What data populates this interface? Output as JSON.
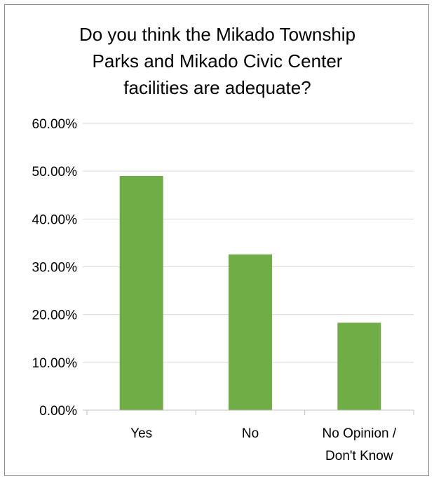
{
  "chart_data": {
    "type": "bar",
    "title_lines": [
      "Do you think the Mikado Township",
      "Parks and Mikado Civic Center",
      "facilities are adequate?"
    ],
    "categories": [
      [
        "Yes"
      ],
      [
        "No"
      ],
      [
        "No Opinion /",
        "Don't Know"
      ]
    ],
    "values": [
      0.49,
      0.326,
      0.183
    ],
    "ylim": [
      0,
      0.6
    ],
    "ytick_step": 0.1,
    "ytick_labels": [
      "0.00%",
      "10.00%",
      "20.00%",
      "30.00%",
      "40.00%",
      "50.00%",
      "60.00%"
    ],
    "grid": true,
    "bar_color": "#70ad47",
    "grid_color": "#d9d9d9",
    "axis_color": "#bfbfbf"
  }
}
